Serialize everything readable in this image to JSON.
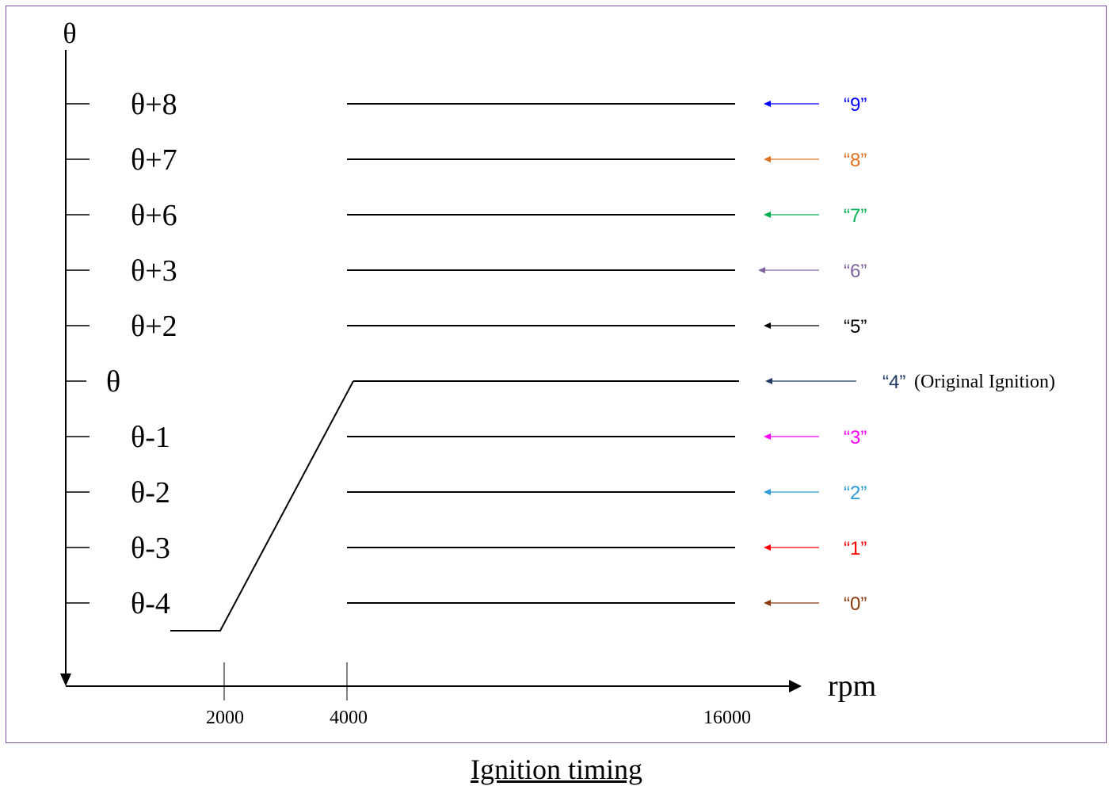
{
  "caption": "Ignition timing",
  "axis": {
    "y_symbol": "θ",
    "x_label": "rpm",
    "x_ticks": [
      "2000",
      "4000",
      "16000"
    ]
  },
  "levels": [
    {
      "label": "θ+8",
      "code": "“9”",
      "color": "#0000ff"
    },
    {
      "label": "θ+7",
      "code": "“8”",
      "color": "#e07020"
    },
    {
      "label": "θ+6",
      "code": "“7”",
      "color": "#00b050"
    },
    {
      "label": "θ+3",
      "code": "“6”",
      "color": "#8064a2"
    },
    {
      "label": "θ+2",
      "code": "“5”",
      "color": "#000000"
    },
    {
      "label": "θ",
      "code": "“4”",
      "color": "#1f3864",
      "note": "(Original Ignition)"
    },
    {
      "label": "θ-1",
      "code": "“3”",
      "color": "#ff00ff"
    },
    {
      "label": "θ-2",
      "code": "“2”",
      "color": "#2e9ad6"
    },
    {
      "label": "θ-3",
      "code": "“1”",
      "color": "#ff0000"
    },
    {
      "label": "θ-4",
      "code": "“0”",
      "color": "#8b3a0e"
    }
  ]
}
